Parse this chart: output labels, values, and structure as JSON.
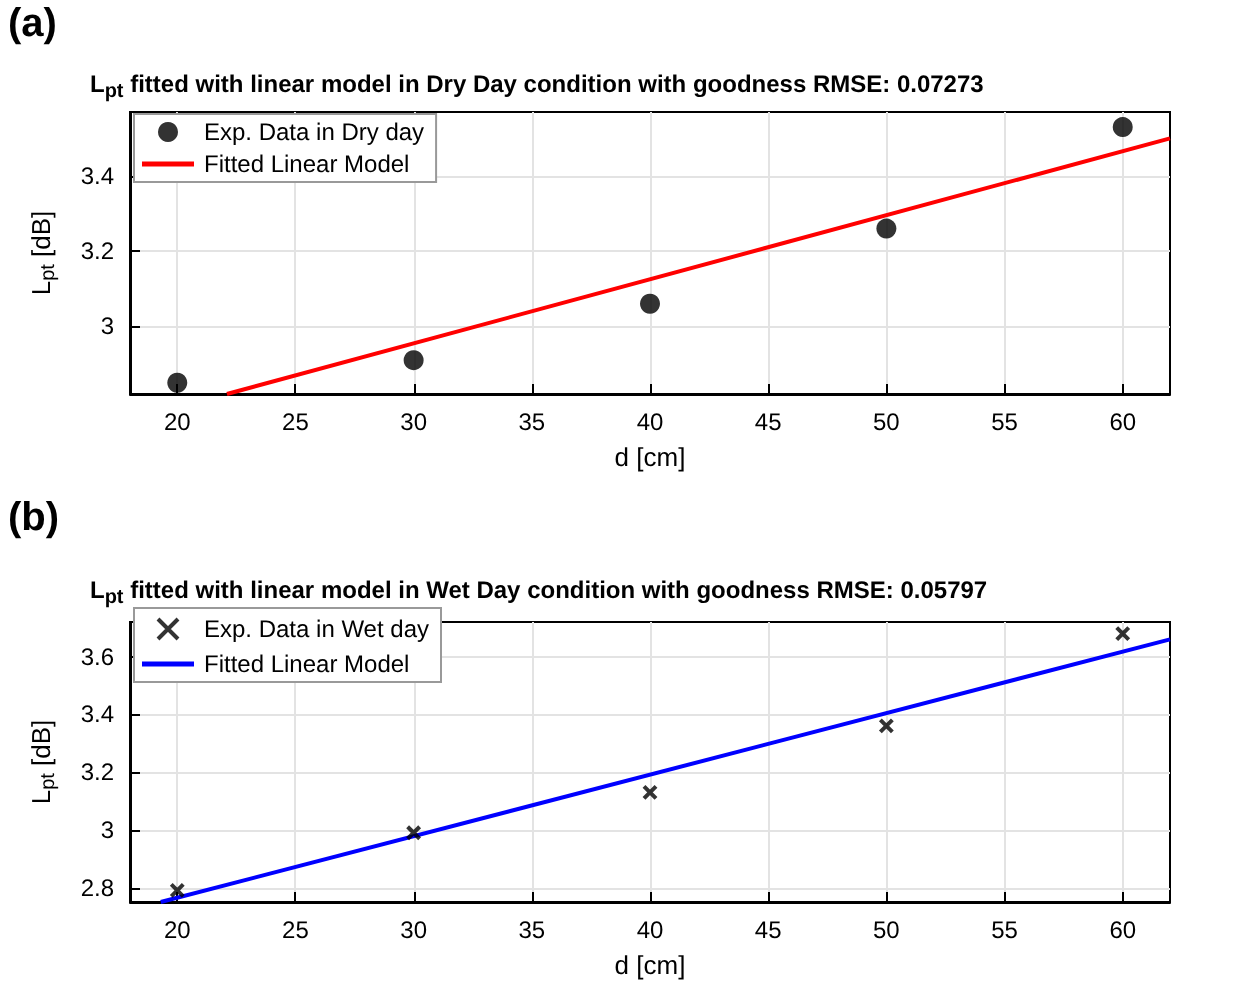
{
  "chart_data": [
    {
      "type": "scatter",
      "title": "L$_{pt}$ fitted with linear model in Dry Day condition with goodness RMSE: 0.07273",
      "xlabel": "d [cm]",
      "ylabel": "L$_{pt}$ [dB]",
      "annotations": [
        "(a)"
      ],
      "grid": true,
      "legend": "top left",
      "xlim": [
        18,
        62
      ],
      "xticks": [
        20,
        25,
        30,
        35,
        40,
        45,
        50,
        55,
        60
      ],
      "ylim": [
        2.82,
        3.57
      ],
      "yticks": [
        3,
        3.2,
        3.4
      ],
      "series": [
        {
          "name": "Exp. Data in Dry day",
          "marker": "circle",
          "color": "#000000",
          "x": [
            20,
            30,
            40,
            50,
            60
          ],
          "values": [
            2.85,
            2.91,
            3.06,
            3.26,
            3.53
          ]
        },
        {
          "name": "Fitted Linear Model",
          "type": "line",
          "marker": "none",
          "color": "#ff0000",
          "x": [
            22.1,
            62
          ],
          "values": [
            2.82,
            3.5
          ]
        }
      ]
    },
    {
      "type": "scatter",
      "title": "L$_{pt}$ fitted with linear model in Wet Day condition with goodness RMSE: 0.05797",
      "xlabel": "d [cm]",
      "ylabel": "L$_{pt}$ [dB]",
      "annotations": [
        "(b)"
      ],
      "grid": true,
      "legend": "top left",
      "xlim": [
        18,
        62
      ],
      "xticks": [
        20,
        25,
        30,
        35,
        40,
        45,
        50,
        55,
        60
      ],
      "ylim": [
        2.75,
        3.72
      ],
      "yticks": [
        2.8,
        3,
        3.2,
        3.4,
        3.6
      ],
      "series": [
        {
          "name": "Exp. Data in Wet day",
          "marker": "cross",
          "color": "#000000",
          "x": [
            20,
            30,
            40,
            50,
            60
          ],
          "values": [
            2.79,
            2.99,
            3.13,
            3.36,
            3.68
          ]
        },
        {
          "name": "Fitted Linear Model",
          "type": "line",
          "marker": "none",
          "color": "#0000ff",
          "x": [
            19.3,
            62
          ],
          "values": [
            2.75,
            3.66
          ]
        }
      ]
    }
  ]
}
